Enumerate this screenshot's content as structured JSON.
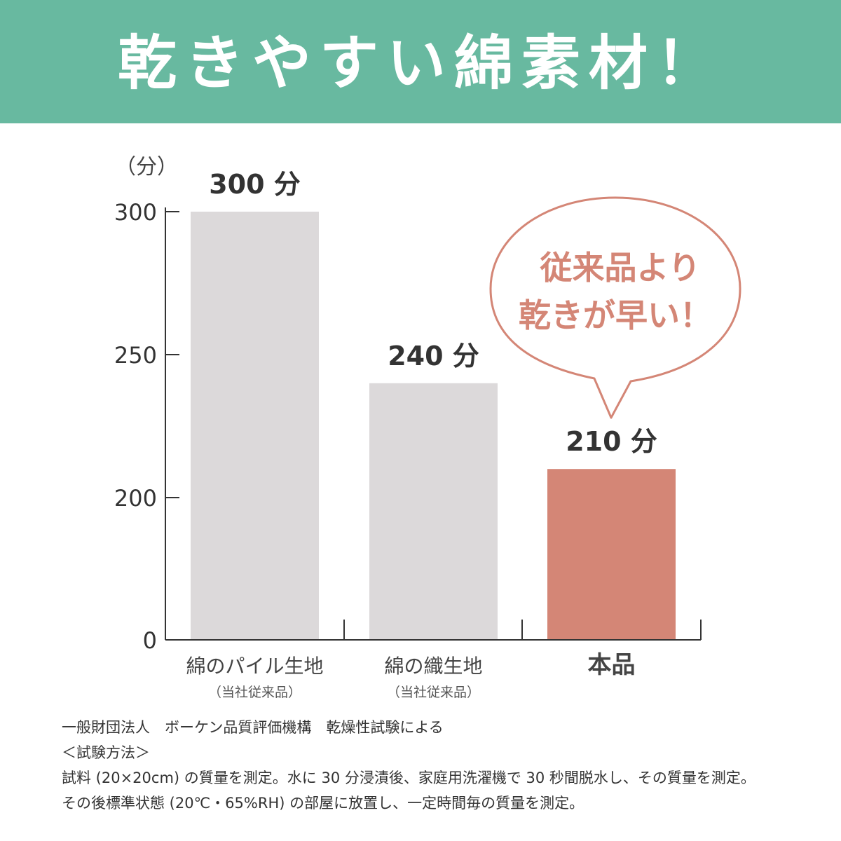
{
  "title": "乾きやすい綿素材！",
  "colors": {
    "header": "#68b9a0",
    "bar": "#dcd9da",
    "highlight": "#d48676",
    "axis": "#333333"
  },
  "chart_data": {
    "type": "bar",
    "ylabel": "（分）",
    "ylim": [
      0,
      300
    ],
    "yticks": [
      0,
      200,
      250,
      300
    ],
    "categories": [
      "綿のパイル生地",
      "綿の織生地",
      "本品"
    ],
    "category_sublabels": [
      "（当社従来品）",
      "（当社従来品）",
      ""
    ],
    "values": [
      300,
      240,
      210
    ],
    "value_labels": [
      "300 分",
      "240 分",
      "210 分"
    ],
    "highlight_index": 2,
    "grid": false,
    "annotation": [
      "従来品より",
      "乾きが早い！"
    ]
  },
  "footnote": {
    "lines": [
      "一般財団法人　ボーケン品質評価機構　乾燥性試験による",
      "＜試験方法＞",
      "試料 (20×20cm) の質量を測定。水に 30 分浸漬後、家庭用洗濯機で 30 秒間脱水し、その質量を測定。",
      "その後標準状態 (20℃・65%RH) の部屋に放置し、一定時間毎の質量を測定。"
    ]
  }
}
